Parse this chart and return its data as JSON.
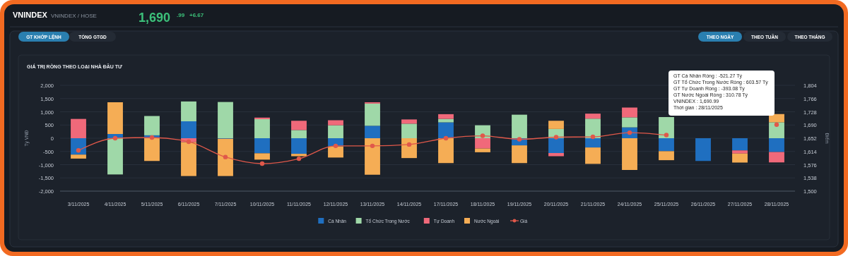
{
  "chart_data": {
    "type": "bar",
    "stacked": true,
    "title": "GIÁ TRỊ RÒNG THEO LOẠI NHÀ ĐẦU TƯ",
    "ylabel": "Tỷ VNĐ",
    "y2label": "Điểm",
    "categories": [
      "3/11/2025",
      "4/11/2025",
      "5/11/2025",
      "6/11/2025",
      "7/11/2025",
      "10/11/2025",
      "11/11/2025",
      "12/11/2025",
      "13/11/2025",
      "14/11/2025",
      "17/11/2025",
      "18/11/2025",
      "19/11/2025",
      "20/11/2025",
      "21/11/2025",
      "24/11/2025",
      "25/11/2025",
      "26/11/2025",
      "27/11/2025",
      "28/11/2025"
    ],
    "series": [
      {
        "name": "Cá Nhân",
        "color": "#1f6fc0",
        "values": [
          -620,
          160,
          110,
          640,
          -20,
          -570,
          -590,
          -310,
          470,
          0,
          600,
          0,
          -270,
          -560,
          -350,
          410,
          -490,
          -860,
          -460,
          -521.27
        ]
      },
      {
        "name": "Tổ Chức Trong Nước",
        "color": "#9fd8a8",
        "values": [
          0,
          -1370,
          730,
          750,
          1370,
          720,
          310,
          490,
          840,
          550,
          130,
          490,
          890,
          350,
          740,
          380,
          800,
          null,
          null,
          603.57
        ]
      },
      {
        "name": "Tự Doanh",
        "color": "#f0697a",
        "values": [
          730,
          0,
          0,
          -150,
          0,
          60,
          350,
          190,
          50,
          160,
          180,
          -390,
          0,
          -120,
          190,
          370,
          0,
          null,
          -120,
          -393.08
        ]
      },
      {
        "name": "Nước Ngoài",
        "color": "#f5ad55",
        "values": [
          -150,
          1200,
          -860,
          -1280,
          -1410,
          -240,
          -90,
          -420,
          -1380,
          -750,
          -940,
          -140,
          -670,
          310,
          -620,
          -1200,
          -340,
          null,
          -340,
          310.78
        ]
      },
      {
        "name": "Giá",
        "type": "line",
        "axis": "y2",
        "color": "#e0584a",
        "values": [
          1617,
          1652,
          1654,
          1642,
          1598,
          1579,
          1593,
          1630,
          1630,
          1634,
          1652,
          1659,
          1649,
          1655,
          1656,
          1668,
          1661,
          null,
          null,
          1690.99
        ]
      }
    ],
    "ylim": [
      -2000,
      2000
    ],
    "yticks": [
      {
        "value": -2000,
        "label": "-2,000"
      },
      {
        "value": -1500,
        "label": "-1,500"
      },
      {
        "value": -1000,
        "label": "-1,000"
      },
      -500,
      0,
      500,
      {
        "value": 1000,
        "label": "1,000"
      },
      {
        "value": 1500,
        "label": "1,500"
      },
      {
        "value": 2000,
        "label": "2,000"
      }
    ],
    "y2lim": [
      1500,
      1804
    ],
    "y2ticks": [
      {
        "value": 1500,
        "label": "1,500"
      },
      {
        "value": 1538,
        "label": "1,538"
      },
      {
        "value": 1576,
        "label": "1,576"
      },
      {
        "value": 1614,
        "label": "1,614"
      },
      {
        "value": 1652,
        "label": "1,652"
      },
      {
        "value": 1690,
        "label": "1,690"
      },
      {
        "value": 1728,
        "label": "1,728"
      },
      {
        "value": 1766,
        "label": "1,766"
      },
      {
        "value": 1804,
        "label": "1,804"
      }
    ],
    "grid": "y",
    "legend": "bottom",
    "marker": "circle",
    "annotations": [
      "VNINDEX",
      "VNINDEX / HOSE",
      "1,690",
      ".99",
      "+6.67",
      "GT KHỚP LỆNH",
      "TỔNG GTGD",
      "THEO NGÀY",
      "THEO TUẦN",
      "THEO THÁNG",
      "GT Cá Nhân Ròng : -521.27 Tỷ",
      "GT Tổ Chức Trong Nước Ròng : 603.57 Tỷ",
      "GT Tự Doanh Ròng : -393.08 Tỷ",
      "GT Nước Ngoài Ròng : 310.78 Tỷ",
      "VNINDEX : 1,690.99",
      "Thời gian : 28/11/2025"
    ]
  }
}
